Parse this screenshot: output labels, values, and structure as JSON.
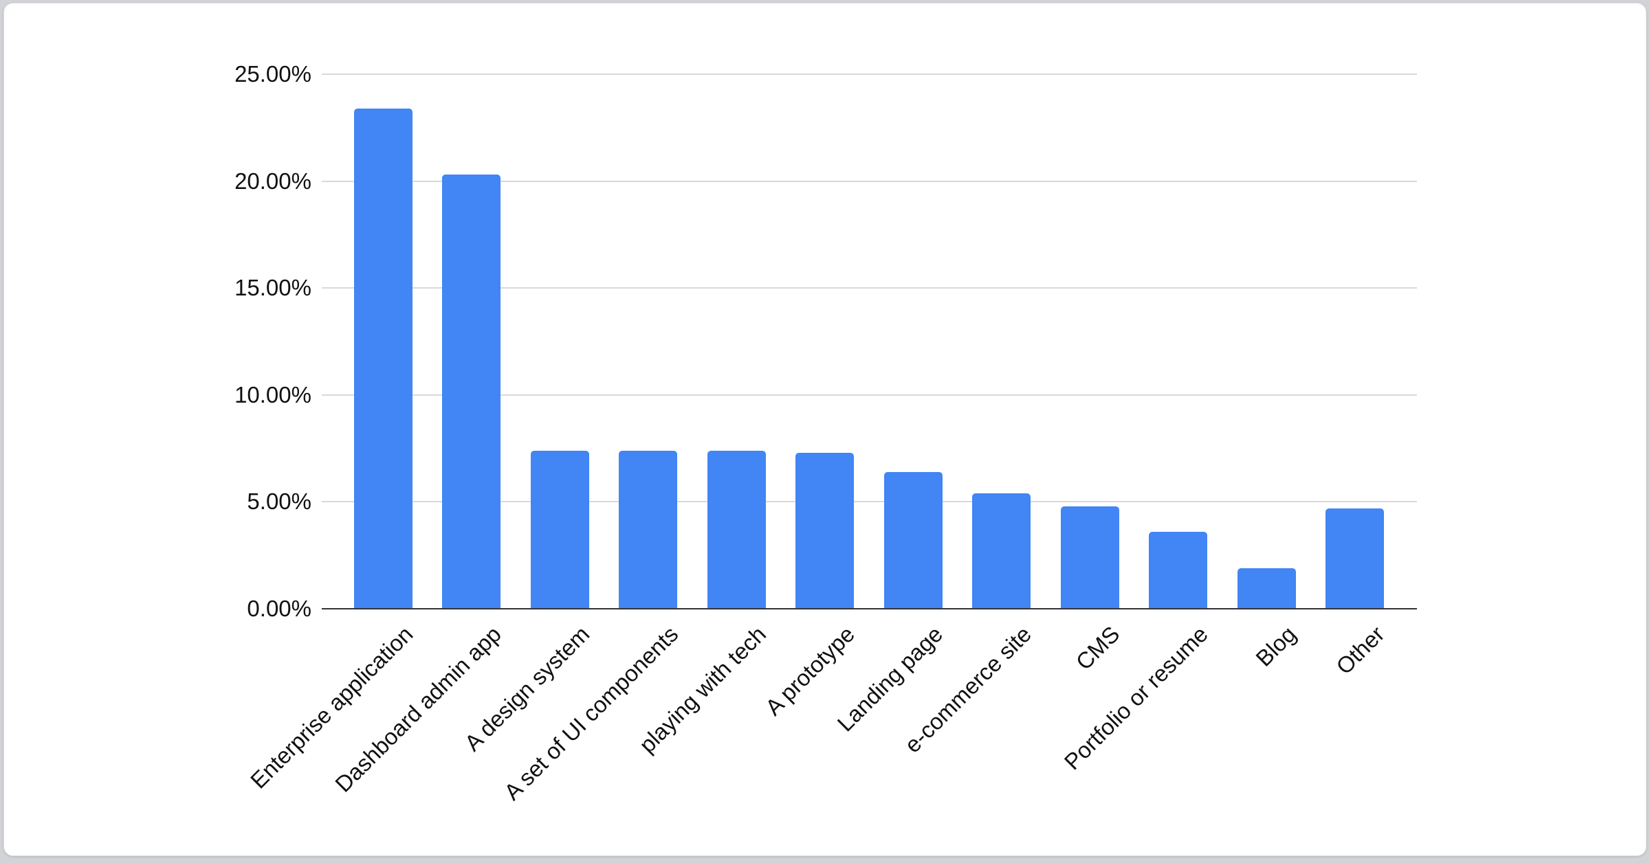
{
  "window": {
    "background_color": "#d2d3d7",
    "card_background": "#ffffff"
  },
  "chart_data": {
    "type": "bar",
    "title": "",
    "xlabel": "",
    "ylabel": "",
    "categories": [
      "Enterprise application",
      "Dashboard admin app",
      "A design system",
      "A set of UI components",
      "playing with tech",
      "A prototype",
      "Landing page",
      "e-commerce site",
      "CMS",
      "Portfolio or resume",
      "Blog",
      "Other"
    ],
    "values": [
      23.4,
      20.3,
      7.4,
      7.4,
      7.4,
      7.3,
      6.4,
      5.4,
      4.8,
      3.6,
      1.9,
      4.7
    ],
    "unit": "%",
    "bar_color": "#4285F4",
    "ylim": [
      0,
      25
    ],
    "y_ticks": [
      {
        "label": "25.00%",
        "value": 25
      },
      {
        "label": "20.00%",
        "value": 20
      },
      {
        "label": "15.00%",
        "value": 15
      },
      {
        "label": "10.00%",
        "value": 10
      },
      {
        "label": "5.00%",
        "value": 5
      },
      {
        "label": "0.00%",
        "value": 0
      }
    ],
    "grid": true,
    "gridline_color": "#d9d9d9",
    "axis_line_color": "#333333",
    "label_color": "#111111",
    "legend": "none",
    "x_label_rotation_deg": -45
  }
}
